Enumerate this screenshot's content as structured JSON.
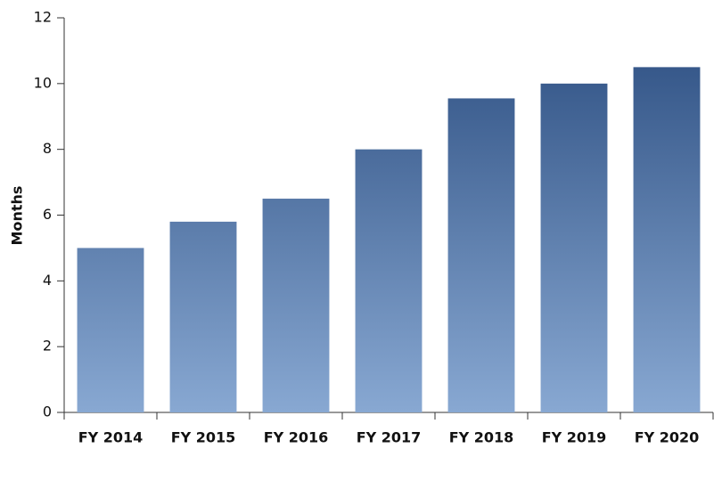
{
  "chart_data": {
    "type": "bar",
    "y_label": "Months",
    "categories": [
      "FY 2014",
      "FY 2015",
      "FY 2016",
      "FY 2017",
      "FY 2018",
      "FY 2019",
      "FY 2020"
    ],
    "values": [
      5,
      5.8,
      6.5,
      8,
      9.55,
      10,
      10.5
    ],
    "gradient": [
      "#2b4d80",
      "#88a8d2"
    ],
    "ylim": [
      0,
      12
    ],
    "yticks": [
      0,
      2,
      4,
      6,
      8,
      10,
      12
    ],
    "grid": false
  }
}
